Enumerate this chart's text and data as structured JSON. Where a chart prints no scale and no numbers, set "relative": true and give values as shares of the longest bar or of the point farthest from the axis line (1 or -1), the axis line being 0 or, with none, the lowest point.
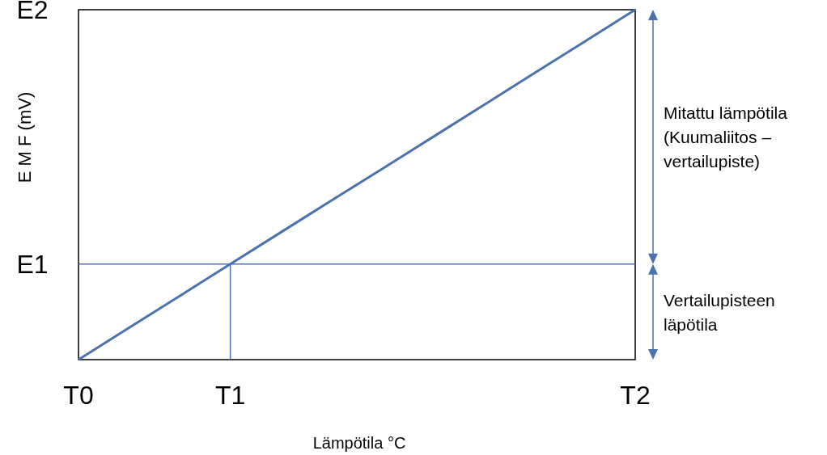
{
  "chart_data": {
    "type": "line",
    "relative": true,
    "xlabel": "Lämpötila °C",
    "ylabel": "E M F (mV)",
    "categories": [
      "T0",
      null,
      null,
      "T1",
      null,
      null,
      null,
      null,
      null,
      null,
      null,
      "T2"
    ],
    "series": [
      {
        "color": "#4a72b0",
        "values": [
          0,
          0.091,
          0.182,
          0.273,
          0.364,
          0.455,
          0.545,
          0.636,
          0.727,
          0.818,
          0.909,
          1
        ]
      }
    ],
    "ref_lines": [
      {
        "axis": "y",
        "value": 0.273,
        "color": "#4a72b0"
      },
      {
        "axis": "x",
        "value": "T1",
        "color": "#4a72b0"
      }
    ],
    "annotations": [
      "E1",
      "E2",
      "Mitattu lämpötila\n(Kuumaliitos  –\nvertailupiste)",
      "Vertailupisteen\nläpötila"
    ]
  }
}
